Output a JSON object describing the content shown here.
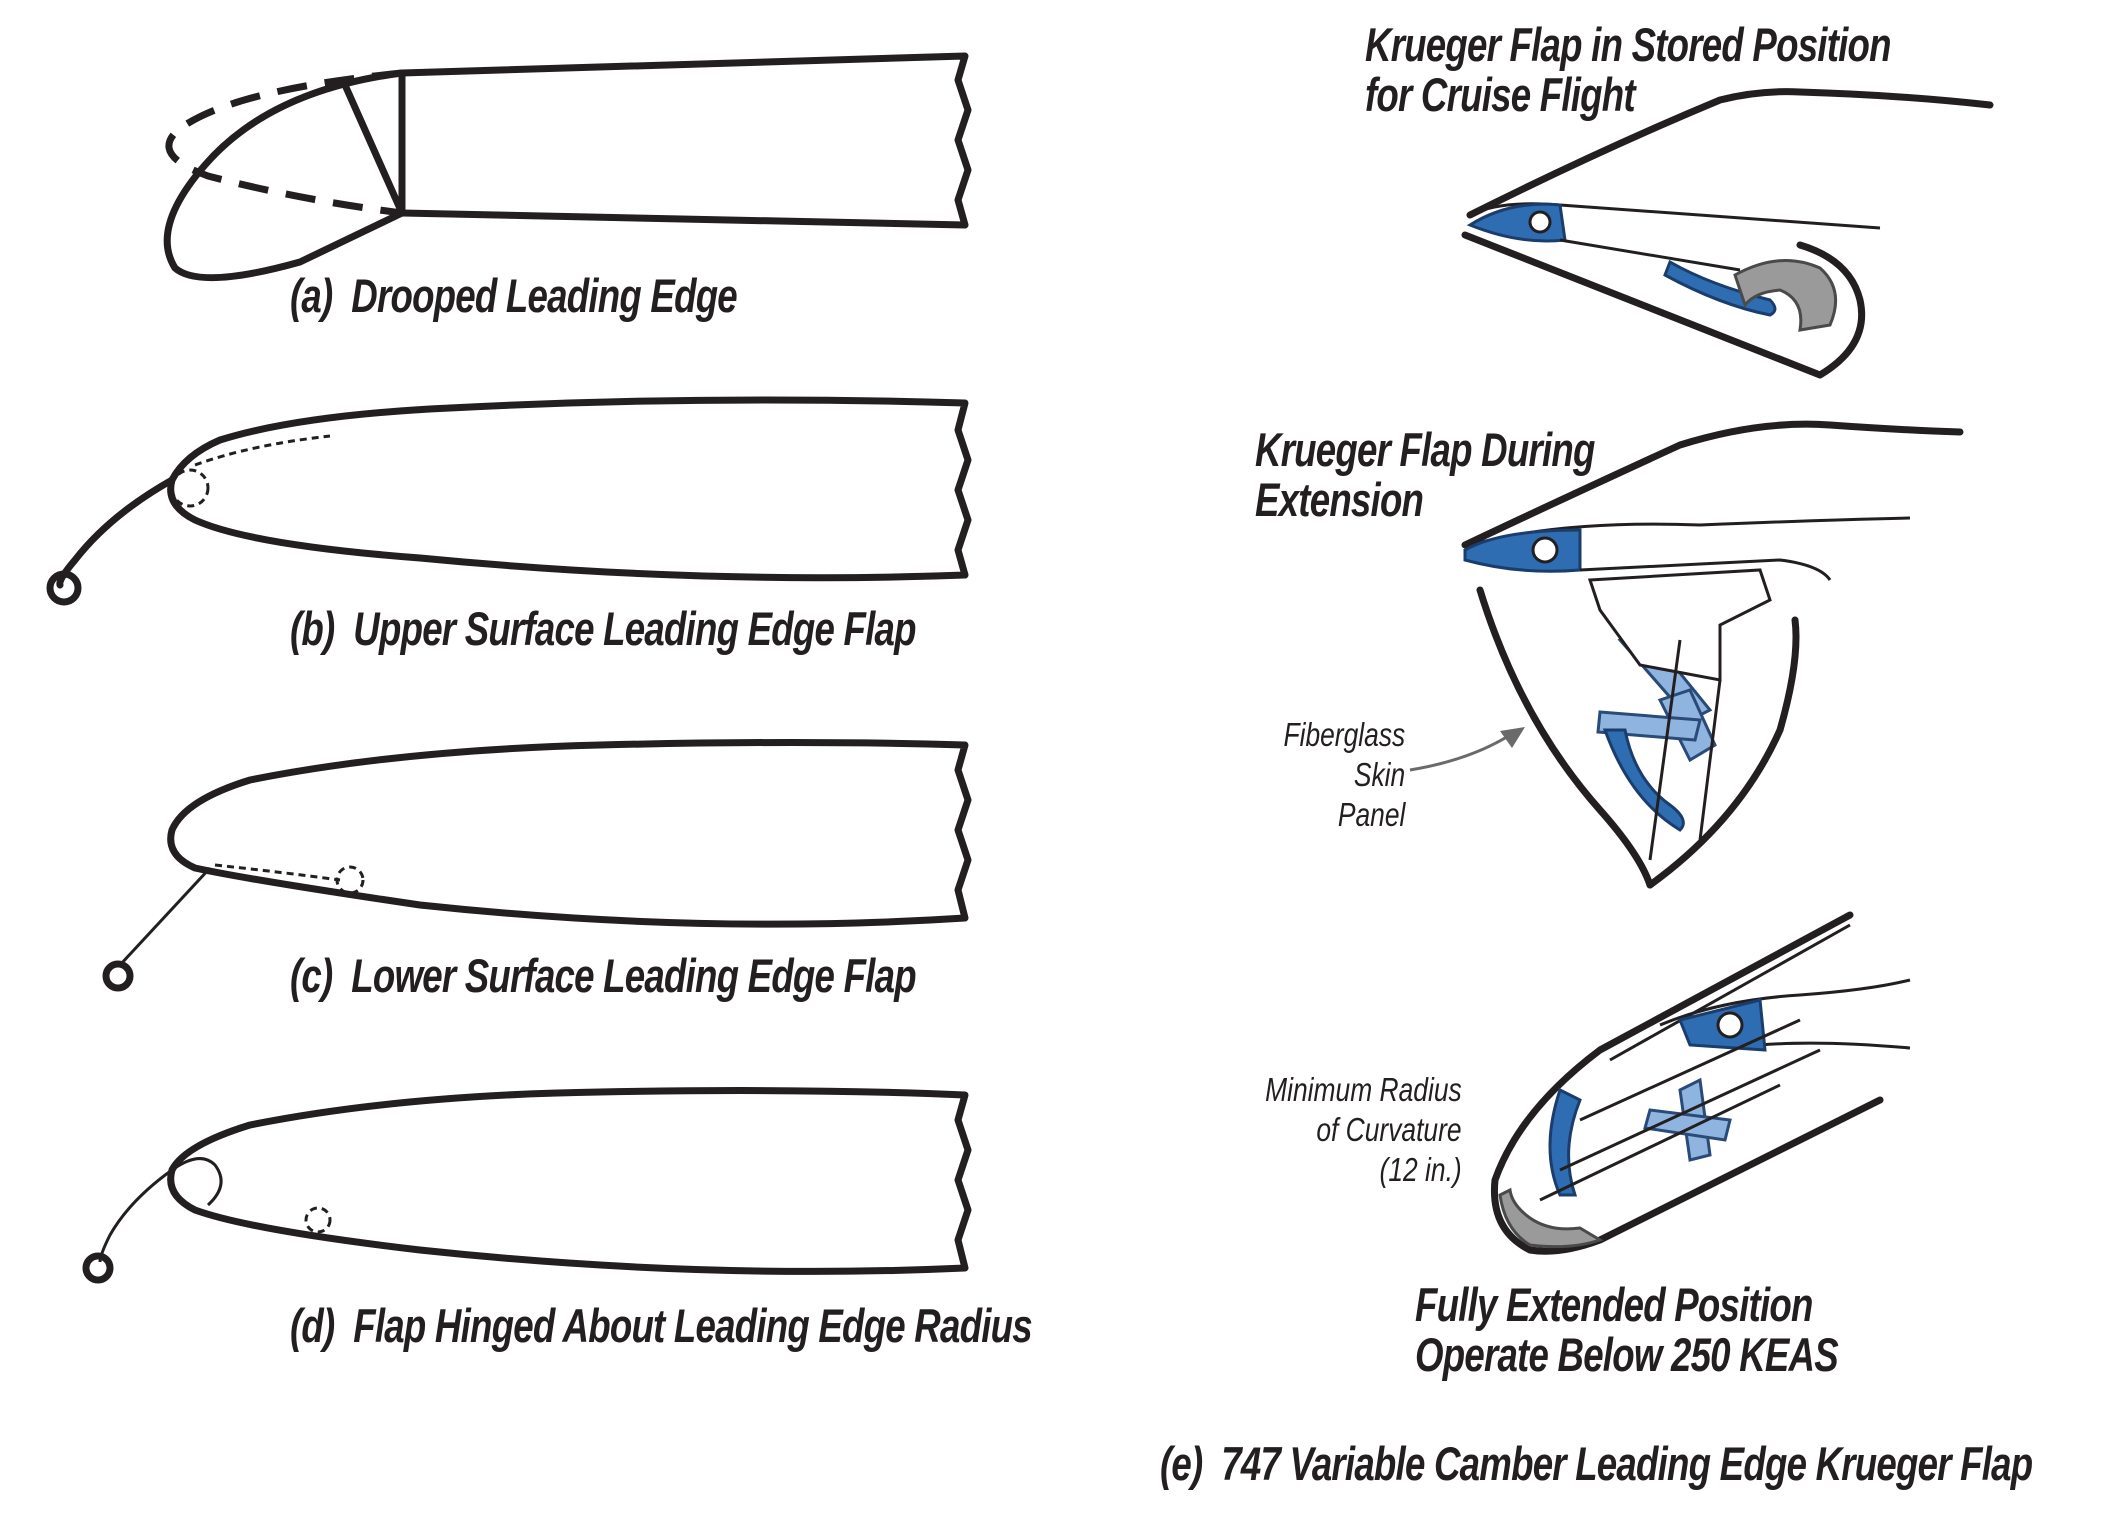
{
  "captions": {
    "a": "(a)  Drooped Leading Edge",
    "b": "(b)  Upper Surface Leading Edge Flap",
    "c": "(c)  Lower Surface Leading Edge Flap",
    "d": "(d)  Flap Hinged About Leading Edge Radius",
    "e": "(e)  747 Variable Camber Leading Edge Krueger Flap"
  },
  "krueger": {
    "stored_line1": "Krueger Flap in Stored Position",
    "stored_line2": "for Cruise Flight",
    "during_line1": "Krueger Flap During",
    "during_line2": "Extension",
    "fiberglass_line1": "Fiberglass",
    "fiberglass_line2": "Skin",
    "fiberglass_line3": "Panel",
    "radius_line1": "Minimum Radius",
    "radius_line2": "of Curvature",
    "radius_line3": "(12 in.)",
    "full_line1": "Fully Extended Position",
    "full_line2": "Operate Below 250 KEAS"
  },
  "colors": {
    "ink": "#231f20",
    "mechanism_blue": "#2f6db3",
    "link_light_blue": "#8fb4e0",
    "nose_gray": "#9a9a9a"
  }
}
